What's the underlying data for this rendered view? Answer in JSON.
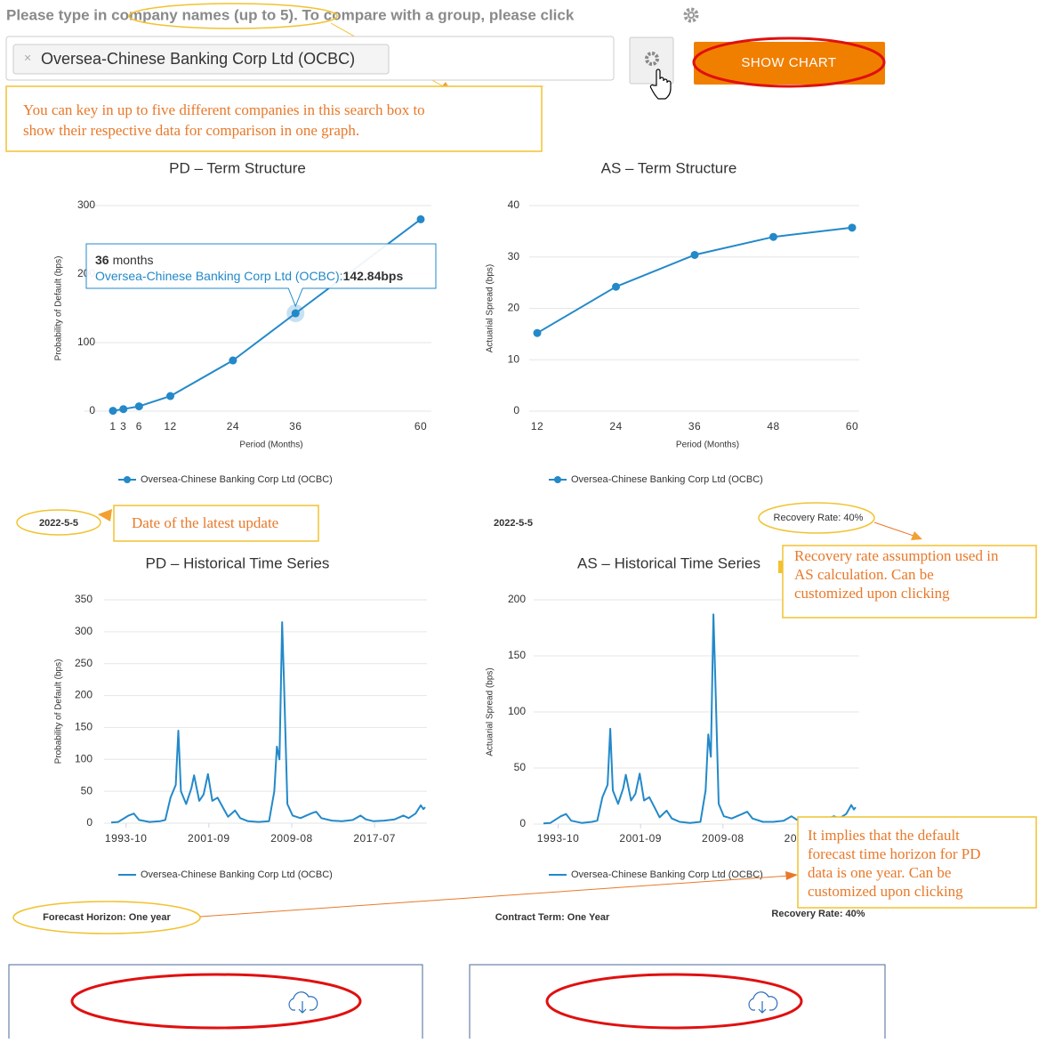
{
  "header": {
    "prompt": "Please type in company names (up to 5). To compare with a group, please click"
  },
  "search": {
    "chip_remove": "×",
    "chip": "Oversea-Chinese Banking Corp Ltd (OCBC)",
    "button": "SHOW CHART"
  },
  "annotations": {
    "search_tip": [
      "You can key in up to five different companies in this search box to",
      "show their respective data for comparison in one graph."
    ],
    "date_tip": "Date of the latest update",
    "recovery_tip": [
      "Recovery rate assumption used in",
      "AS calculation. Can be",
      "customized upon clicking"
    ],
    "horizon_tip": [
      "It implies that the default",
      "forecast time horizon for PD",
      "data is one year. Can be",
      "customized upon clicking"
    ]
  },
  "chart_notes": {
    "pd_date": "2022-5-5",
    "as_date": "2022-5-5",
    "as_recovery": "Recovery Rate: 40%",
    "pd_horizon": "Forecast Horizon: One year",
    "as_term": "Contract Term: One Year",
    "as_recovery_bottom": "Recovery Rate: 40%"
  },
  "chart_data": [
    {
      "type": "line",
      "title": "PD – Term Structure",
      "x_label": "Period (Months)",
      "y_label": "Probability of Default (bps)",
      "x": [
        1,
        3,
        6,
        12,
        24,
        36,
        60
      ],
      "xlim": [
        1,
        60
      ],
      "xticks": [
        1,
        3,
        6,
        12,
        24,
        36,
        60
      ],
      "ylim": [
        0,
        300
      ],
      "yticks": [
        0,
        100,
        200,
        300
      ],
      "grid": true,
      "markers": true,
      "series": [
        {
          "name": "Oversea-Chinese Banking Corp Ltd (OCBC)",
          "color": "#2389c9",
          "values": [
            0.5,
            3,
            7,
            22,
            74,
            142.84,
            280
          ]
        }
      ],
      "tooltip": {
        "x_label": "36",
        "x_suffix": "months",
        "series_label": "Oversea-Chinese Banking Corp Ltd (OCBC):",
        "value_label": "142.84bps"
      }
    },
    {
      "type": "line",
      "title": "AS – Term Structure",
      "x_label": "Period (Months)",
      "y_label": "Actuarial Spread (bps)",
      "x": [
        12,
        24,
        36,
        48,
        60
      ],
      "xlim": [
        12,
        60
      ],
      "xticks": [
        12,
        24,
        36,
        48,
        60
      ],
      "ylim": [
        0,
        40
      ],
      "yticks": [
        0,
        10,
        20,
        30,
        40
      ],
      "grid": true,
      "markers": true,
      "series": [
        {
          "name": "Oversea-Chinese Banking Corp Ltd (OCBC)",
          "color": "#2389c9",
          "values": [
            15.2,
            24.2,
            30.4,
            33.9,
            35.7
          ]
        }
      ]
    },
    {
      "type": "line",
      "title": "PD – Historical Time Series",
      "y_label": "Probability of Default (bps)",
      "x": [
        "1992-05",
        "1993-01",
        "1994-01",
        "1994-07",
        "1995-01",
        "1996-01",
        "1997-01",
        "1997-07",
        "1998-01",
        "1998-07",
        "1998-10",
        "1999-01",
        "1999-07",
        "2000-01",
        "2000-04",
        "2000-10",
        "2001-03",
        "2001-08",
        "2002-01",
        "2002-07",
        "2003-01",
        "2003-07",
        "2004-03",
        "2004-09",
        "2005-06",
        "2006-06",
        "2007-06",
        "2007-12",
        "2008-03",
        "2008-06",
        "2008-09",
        "2008-11",
        "2009-03",
        "2009-09",
        "2010-06",
        "2011-06",
        "2011-12",
        "2012-06",
        "2013-06",
        "2014-06",
        "2015-06",
        "2016-03",
        "2016-09",
        "2017-06",
        "2018-06",
        "2019-06",
        "2020-04",
        "2020-10",
        "2021-06",
        "2021-12",
        "2022-03",
        "2022-05"
      ],
      "xlim": [
        "1992-05",
        "2022-05"
      ],
      "xticks": [
        "1993-10",
        "2001-09",
        "2009-08",
        "2017-07"
      ],
      "ylim": [
        0,
        350
      ],
      "yticks": [
        0,
        50,
        100,
        150,
        200,
        250,
        300,
        350
      ],
      "grid": true,
      "markers": false,
      "series": [
        {
          "name": "Oversea-Chinese Banking Corp Ltd (OCBC)",
          "color": "#2389c9",
          "values": [
            1,
            2,
            12,
            15,
            5,
            2,
            3,
            5,
            40,
            60,
            145,
            50,
            30,
            55,
            75,
            35,
            45,
            77,
            35,
            40,
            25,
            10,
            20,
            8,
            3,
            2,
            3,
            50,
            120,
            100,
            315,
            230,
            30,
            12,
            8,
            15,
            18,
            8,
            4,
            3,
            5,
            12,
            6,
            3,
            4,
            6,
            12,
            8,
            15,
            28,
            22,
            25
          ]
        }
      ]
    },
    {
      "type": "line",
      "title": "AS – Historical Time Series",
      "y_label": "Actuarial Spread (bps)",
      "x": [
        "1992-05",
        "1993-01",
        "1994-01",
        "1994-07",
        "1995-01",
        "1996-01",
        "1997-01",
        "1997-07",
        "1998-01",
        "1998-07",
        "1998-10",
        "1999-01",
        "1999-07",
        "2000-01",
        "2000-04",
        "2000-10",
        "2001-03",
        "2001-08",
        "2002-01",
        "2002-07",
        "2003-01",
        "2003-07",
        "2004-03",
        "2004-09",
        "2005-06",
        "2006-06",
        "2007-06",
        "2007-12",
        "2008-03",
        "2008-06",
        "2008-09",
        "2008-11",
        "2009-03",
        "2009-09",
        "2010-06",
        "2011-06",
        "2011-12",
        "2012-06",
        "2013-06",
        "2014-06",
        "2015-06",
        "2016-03",
        "2016-09",
        "2017-06",
        "2018-06",
        "2019-06",
        "2020-04",
        "2020-10",
        "2021-06",
        "2021-12",
        "2022-03",
        "2022-05"
      ],
      "xlim": [
        "1992-05",
        "2022-05"
      ],
      "xticks": [
        "1993-10",
        "2001-09",
        "2009-08",
        "2017-07"
      ],
      "ylim": [
        0,
        200
      ],
      "yticks": [
        0,
        50,
        100,
        150,
        200
      ],
      "grid": true,
      "markers": false,
      "series": [
        {
          "name": "Oversea-Chinese Banking Corp Ltd (OCBC)",
          "color": "#2389c9",
          "values": [
            0.6,
            1,
            7,
            9,
            3,
            1,
            2,
            3,
            24,
            35,
            85,
            30,
            18,
            32,
            44,
            21,
            27,
            45,
            21,
            24,
            15,
            6,
            12,
            5,
            2,
            1,
            2,
            30,
            80,
            60,
            187,
            135,
            18,
            7,
            5,
            9,
            11,
            5,
            2,
            2,
            3,
            7,
            4,
            2,
            2,
            4,
            7,
            5,
            9,
            17,
            13,
            15
          ]
        }
      ]
    }
  ]
}
